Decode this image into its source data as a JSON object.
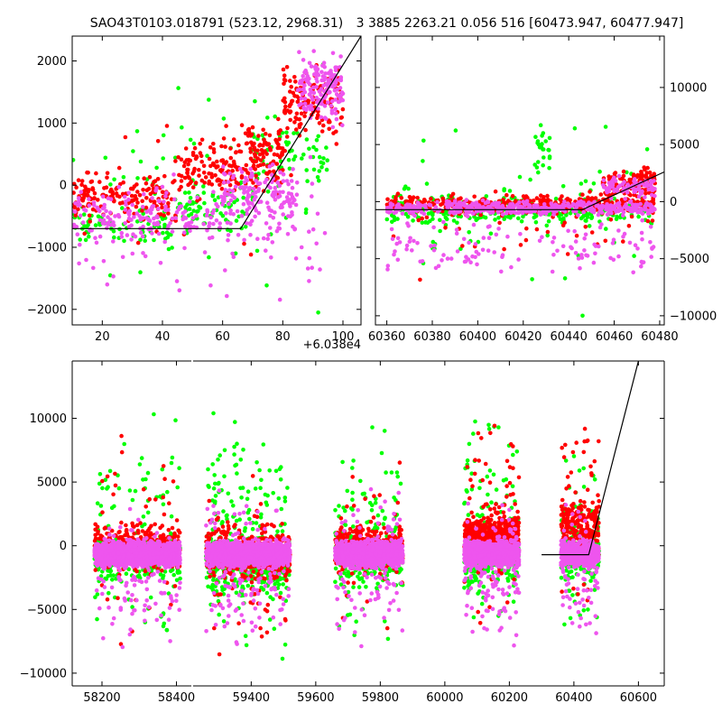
{
  "title_left": "SAO43T0103.018791 (523.12, 2968.31)",
  "title_right": "3 3885 2263.21 0.056 516 [60473.947, 60477.947]",
  "chart_data": [
    {
      "type": "scatter",
      "panel": "top-left",
      "x_offset_label": "+6.038e4",
      "xlim": [
        10,
        106
      ],
      "ylim": [
        -2250,
        2400
      ],
      "x_ticks": [
        20,
        40,
        60,
        80,
        100
      ],
      "y_ticks": [
        -2000,
        -1000,
        0,
        1000,
        2000
      ],
      "y_axis_side": "left",
      "model_line": [
        [
          10,
          -700
        ],
        [
          66,
          -700
        ],
        [
          106,
          2400
        ]
      ],
      "series": [
        {
          "color": "#00ff00",
          "clusters": [
            [
              10,
              45,
              -1100,
              -200,
              70,
              1.0
            ],
            [
              45,
              70,
              -900,
              200,
              70,
              1.0
            ],
            [
              70,
              95,
              -200,
              1400,
              60,
              1.0
            ],
            [
              10,
              95,
              -2200,
              2300,
              60,
              1.0
            ]
          ]
        },
        {
          "color": "#ff0000",
          "clusters": [
            [
              10,
              45,
              -700,
              350,
              160,
              1.0
            ],
            [
              45,
              65,
              -400,
              900,
              110,
              1.0
            ],
            [
              65,
              80,
              -200,
              1200,
              110,
              1.0
            ],
            [
              80,
              100,
              400,
              2300,
              140,
              1.0
            ],
            [
              10,
              95,
              -2100,
              2300,
              25,
              1.0
            ]
          ]
        },
        {
          "color": "#ee55ee",
          "clusters": [
            [
              10,
              60,
              -1100,
              100,
              150,
              1.0
            ],
            [
              60,
              85,
              -900,
              600,
              150,
              1.0
            ],
            [
              85,
              100,
              800,
              2400,
              160,
              1.0
            ],
            [
              10,
              95,
              -2200,
              600,
              90,
              1.0
            ]
          ]
        }
      ]
    },
    {
      "type": "scatter",
      "panel": "top-right",
      "xlim": [
        60355,
        60482
      ],
      "ylim": [
        -10800,
        14500
      ],
      "x_ticks": [
        60360,
        60380,
        60400,
        60420,
        60440,
        60460,
        60480
      ],
      "y_ticks": [
        -10000,
        -5000,
        0,
        5000,
        10000
      ],
      "y_axis_side": "right",
      "model_line": [
        [
          60355,
          -700
        ],
        [
          60446,
          -700
        ],
        [
          60482,
          2600
        ]
      ],
      "series": [
        {
          "color": "#00ff00",
          "clusters": [
            [
              60360,
              60478,
              -2500,
              800,
              260,
              1.0
            ],
            [
              60360,
              60478,
              -10500,
              9500,
              70,
              1.0
            ],
            [
              60425,
              60432,
              500,
              8000,
              25,
              1.0
            ]
          ]
        },
        {
          "color": "#ff0000",
          "clusters": [
            [
              60360,
              60478,
              -1500,
              1100,
              380,
              1.0
            ],
            [
              60455,
              60478,
              0,
              3500,
              130,
              1.0
            ],
            [
              60360,
              60478,
              -8000,
              3000,
              40,
              1.0
            ]
          ]
        },
        {
          "color": "#ee55ee",
          "clusters": [
            [
              60360,
              60478,
              -1400,
              300,
              420,
              1.0
            ],
            [
              60360,
              60478,
              -7500,
              -1000,
              120,
              1.0
            ],
            [
              60455,
              60478,
              0,
              2500,
              80,
              1.0
            ]
          ]
        }
      ]
    },
    {
      "type": "scatter",
      "panel": "bottom",
      "xlim": [
        58120,
        60680
      ],
      "ylim": [
        -11000,
        14500
      ],
      "x_ticks": [
        58200,
        58400,
        59400,
        59600,
        59800,
        60000,
        60200,
        60400,
        60600
      ],
      "y_ticks": [
        -10000,
        -5000,
        0,
        5000,
        10000
      ],
      "y_axis_side": "left",
      "model_line": [
        [
          60300,
          -700
        ],
        [
          60446,
          -700
        ],
        [
          60600,
          14500
        ]
      ],
      "series": [
        {
          "color": "#00ff00",
          "clusters": [
            [
              58180,
              58410,
              -3500,
              1500,
              260,
              1.0
            ],
            [
              58180,
              58410,
              -10500,
              12500,
              90,
              1.0
            ],
            [
              58520,
              58780,
              -4500,
              1500,
              320,
              1.0
            ],
            [
              58520,
              58780,
              -10500,
              13000,
              170,
              1.0
            ],
            [
              58860,
              59090,
              -3500,
              1500,
              260,
              1.0
            ],
            [
              58860,
              59090,
              -10000,
              11000,
              110,
              1.0
            ],
            [
              59200,
              59440,
              -3500,
              1500,
              260,
              1.0
            ],
            [
              59200,
              59440,
              -10500,
              13000,
              110,
              1.0
            ],
            [
              59540,
              59640,
              -3500,
              2000,
              160,
              1.0
            ],
            [
              59540,
              59640,
              -10500,
              11000,
              70,
              1.0
            ]
          ]
        },
        {
          "color": "#ff0000",
          "clusters": [
            [
              58180,
              58410,
              -2500,
              2200,
              380,
              1.0
            ],
            [
              58180,
              58410,
              -10000,
              12000,
              50,
              1.0
            ],
            [
              58520,
              58780,
              -3500,
              2000,
              420,
              1.0
            ],
            [
              58520,
              58780,
              -10500,
              6500,
              60,
              1.0
            ],
            [
              58860,
              59090,
              -2500,
              2000,
              380,
              1.0
            ],
            [
              58860,
              59090,
              -9000,
              10500,
              50,
              1.0
            ],
            [
              59200,
              59440,
              -1500,
              3000,
              480,
              1.0
            ],
            [
              59200,
              59440,
              -9000,
              13500,
              70,
              1.0
            ],
            [
              59540,
              59640,
              -1500,
              4500,
              200,
              1.0
            ],
            [
              59540,
              59640,
              -8000,
              14000,
              40,
              1.0
            ]
          ]
        },
        {
          "color": "#ee55ee",
          "clusters": [
            [
              58180,
              58410,
              -2000,
              700,
              1100,
              1.0
            ],
            [
              58180,
              58410,
              -9000,
              4000,
              120,
              1.0
            ],
            [
              58520,
              58780,
              -2000,
              700,
              1300,
              1.0
            ],
            [
              58520,
              58780,
              -9500,
              5000,
              160,
              1.0
            ],
            [
              58860,
              59090,
              -2000,
              700,
              1100,
              1.0
            ],
            [
              58860,
              59090,
              -9000,
              5500,
              130,
              1.0
            ],
            [
              59200,
              59440,
              -2000,
              700,
              1100,
              1.0
            ],
            [
              59200,
              59440,
              -9000,
              5500,
              130,
              1.0
            ],
            [
              59540,
              59640,
              -2000,
              700,
              500,
              1.0
            ],
            [
              59540,
              59640,
              -9000,
              5000,
              80,
              1.0
            ]
          ]
        }
      ]
    }
  ]
}
